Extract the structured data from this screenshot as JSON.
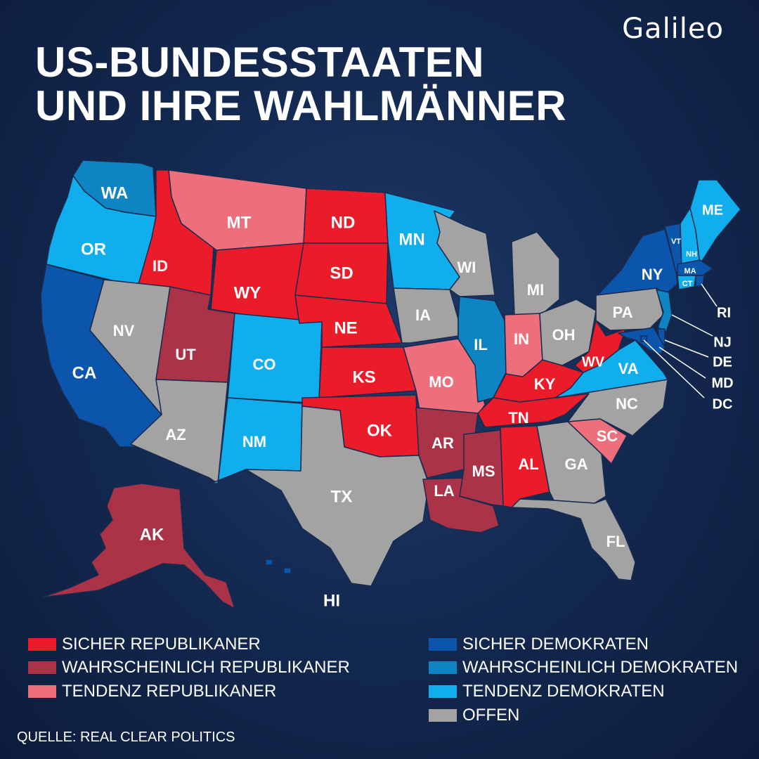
{
  "brand": "Galileo",
  "title": {
    "line1": "US-BUNDESSTAATEN",
    "line2": "UND IHRE WAHLMÄNNER"
  },
  "colors": {
    "sicher_rep": "#ea1c2a",
    "wahrsch_rep": "#aa3348",
    "tendenz_rep": "#ee6f7c",
    "sicher_dem": "#0b55ac",
    "wahrsch_dem": "#0f84c2",
    "tendenz_dem": "#10aeec",
    "offen": "#a3a3a3"
  },
  "legend": {
    "left": [
      {
        "key": "sicher_rep",
        "label": "SICHER REPUBLIKANER"
      },
      {
        "key": "wahrsch_rep",
        "label": "WAHRSCHEINLICH REPUBLIKANER"
      },
      {
        "key": "tendenz_rep",
        "label": "TENDENZ REPUBLIKANER"
      }
    ],
    "right": [
      {
        "key": "sicher_dem",
        "label": "SICHER DEMOKRATEN"
      },
      {
        "key": "wahrsch_dem",
        "label": "WAHRSCHEINLICH DEMOKRATEN"
      },
      {
        "key": "tendenz_dem",
        "label": "TENDENZ DEMOKRATEN"
      },
      {
        "key": "offen",
        "label": "OFFEN"
      }
    ]
  },
  "states": [
    {
      "abbr": "WA",
      "category": "wahrsch_dem"
    },
    {
      "abbr": "OR",
      "category": "tendenz_dem"
    },
    {
      "abbr": "CA",
      "category": "sicher_dem"
    },
    {
      "abbr": "ID",
      "category": "sicher_rep"
    },
    {
      "abbr": "NV",
      "category": "offen"
    },
    {
      "abbr": "MT",
      "category": "tendenz_rep"
    },
    {
      "abbr": "WY",
      "category": "sicher_rep"
    },
    {
      "abbr": "UT",
      "category": "wahrsch_rep"
    },
    {
      "abbr": "AZ",
      "category": "offen"
    },
    {
      "abbr": "CO",
      "category": "tendenz_dem"
    },
    {
      "abbr": "NM",
      "category": "tendenz_dem"
    },
    {
      "abbr": "ND",
      "category": "sicher_rep"
    },
    {
      "abbr": "SD",
      "category": "sicher_rep"
    },
    {
      "abbr": "NE",
      "category": "sicher_rep"
    },
    {
      "abbr": "KS",
      "category": "sicher_rep"
    },
    {
      "abbr": "OK",
      "category": "sicher_rep"
    },
    {
      "abbr": "TX",
      "category": "offen"
    },
    {
      "abbr": "MN",
      "category": "tendenz_dem"
    },
    {
      "abbr": "IA",
      "category": "offen"
    },
    {
      "abbr": "MO",
      "category": "tendenz_rep"
    },
    {
      "abbr": "AR",
      "category": "wahrsch_rep"
    },
    {
      "abbr": "LA",
      "category": "wahrsch_rep"
    },
    {
      "abbr": "WI",
      "category": "offen"
    },
    {
      "abbr": "IL",
      "category": "wahrsch_dem"
    },
    {
      "abbr": "MI",
      "category": "offen"
    },
    {
      "abbr": "IN",
      "category": "tendenz_rep"
    },
    {
      "abbr": "OH",
      "category": "offen"
    },
    {
      "abbr": "KY",
      "category": "sicher_rep"
    },
    {
      "abbr": "TN",
      "category": "sicher_rep"
    },
    {
      "abbr": "MS",
      "category": "wahrsch_rep"
    },
    {
      "abbr": "AL",
      "category": "sicher_rep"
    },
    {
      "abbr": "GA",
      "category": "offen"
    },
    {
      "abbr": "FL",
      "category": "offen"
    },
    {
      "abbr": "SC",
      "category": "tendenz_rep"
    },
    {
      "abbr": "NC",
      "category": "offen"
    },
    {
      "abbr": "VA",
      "category": "tendenz_dem"
    },
    {
      "abbr": "WV",
      "category": "sicher_rep"
    },
    {
      "abbr": "PA",
      "category": "offen"
    },
    {
      "abbr": "NY",
      "category": "sicher_dem"
    },
    {
      "abbr": "VT",
      "category": "sicher_dem"
    },
    {
      "abbr": "NH",
      "category": "tendenz_dem"
    },
    {
      "abbr": "ME",
      "category": "tendenz_dem"
    },
    {
      "abbr": "MA",
      "category": "sicher_dem"
    },
    {
      "abbr": "CT",
      "category": "tendenz_dem"
    },
    {
      "abbr": "RI",
      "category": "sicher_dem"
    },
    {
      "abbr": "NJ",
      "category": "wahrsch_dem"
    },
    {
      "abbr": "DE",
      "category": "sicher_dem"
    },
    {
      "abbr": "MD",
      "category": "sicher_dem"
    },
    {
      "abbr": "DC",
      "category": "sicher_dem"
    },
    {
      "abbr": "AK",
      "category": "wahrsch_rep"
    },
    {
      "abbr": "HI",
      "category": "sicher_dem"
    }
  ],
  "source": "QUELLE: REAL CLEAR POLITICS"
}
